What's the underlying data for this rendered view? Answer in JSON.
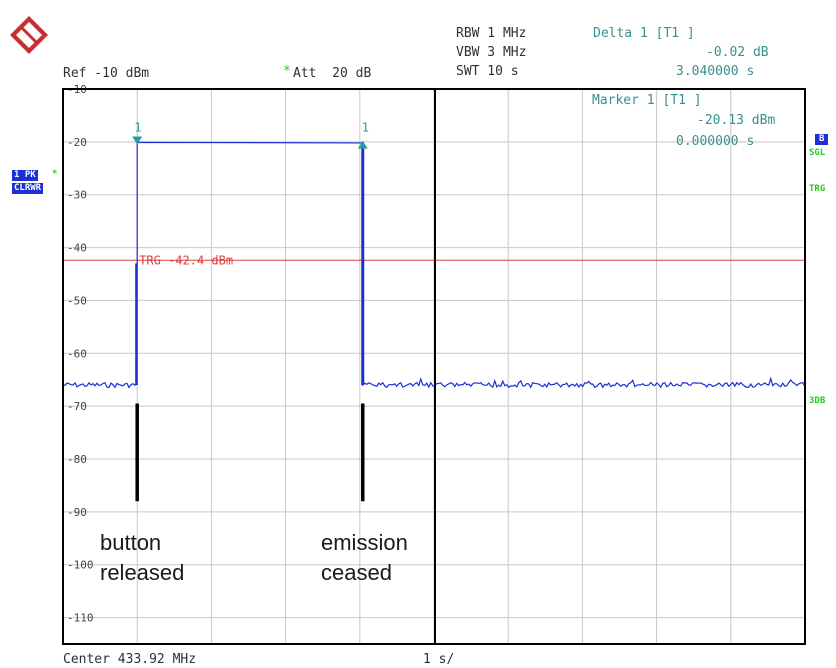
{
  "header": {
    "rbw": "RBW 1 MHz",
    "vbw": "VBW 3 MHz",
    "swt": "SWT 10 s",
    "ref": "Ref -10 dBm",
    "att_star": "*",
    "att": "Att  20 dB",
    "delta_title": "Delta 1 [T1 ]",
    "delta_value": "-0.02 dB",
    "delta_time": "3.040000 s"
  },
  "marker_box": {
    "title": "Marker 1 [T1 ]",
    "value": "-20.13 dBm",
    "time": "0.000000 s"
  },
  "left_badges": {
    "trace": "1 PK",
    "trace_star": "*",
    "mode": "CLRWR"
  },
  "right_badges": {
    "b": "B",
    "sgl": "SGL",
    "trg": "TRG",
    "sdb": "3DB"
  },
  "footer": {
    "center": "Center 433.92 MHz",
    "span": "1 s/"
  },
  "annotations": {
    "left_line1": "button",
    "left_line2": "released",
    "right_line1": "emission",
    "right_line2": "ceased"
  },
  "colors": {
    "trace": "#1a2fd6",
    "trigger": "#d94040",
    "marker": "#2a9a9a",
    "grid": "#c8c8c8",
    "frame": "#000000"
  },
  "chart_data": {
    "type": "line",
    "xlabel": "",
    "ylabel": "",
    "ylim": [
      -110,
      -10
    ],
    "yticks": [
      -10,
      -20,
      -30,
      -40,
      -50,
      -60,
      -70,
      -80,
      -90,
      -100,
      -110
    ],
    "ytick_labels": [
      "-10",
      "-20",
      "-30",
      "-40",
      "-50",
      "-60",
      "-70",
      "-80",
      "-90",
      "-100",
      "-110"
    ],
    "xlim": [
      0,
      10
    ],
    "x_unit": "s",
    "grid": true,
    "trigger": {
      "level": -42.4,
      "label": "TRG -42.4 dBm"
    },
    "markers": [
      {
        "label": "1",
        "x": 1.0,
        "y": -20.13
      },
      {
        "label": "1",
        "x": 4.04,
        "y": -20.15
      }
    ],
    "series": [
      {
        "x": [
          0,
          0.5,
          1.0,
          1.0,
          4.04,
          4.04,
          5.0,
          6.0,
          7.0,
          8.0,
          9.0,
          10.0
        ],
        "values": [
          -66,
          -66,
          -66,
          -20.1,
          -20.2,
          -66,
          -66,
          -66,
          -66,
          -66,
          -66,
          -66
        ]
      }
    ]
  }
}
